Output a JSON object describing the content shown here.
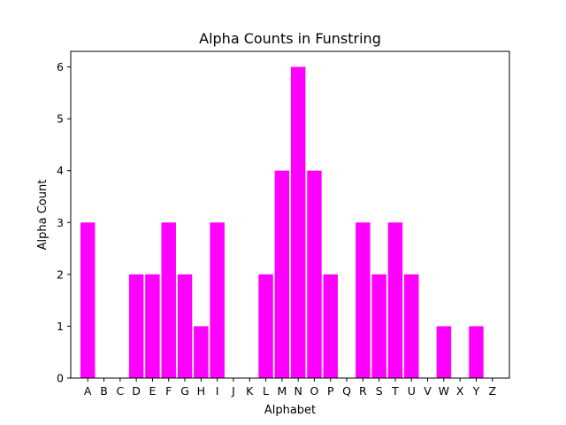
{
  "chart_data": {
    "type": "bar",
    "title": "Alpha Counts in Funstring",
    "xlabel": "Alphabet",
    "ylabel": "Alpha Count",
    "categories": [
      "A",
      "B",
      "C",
      "D",
      "E",
      "F",
      "G",
      "H",
      "I",
      "J",
      "K",
      "L",
      "M",
      "N",
      "O",
      "P",
      "Q",
      "R",
      "S",
      "T",
      "U",
      "V",
      "W",
      "X",
      "Y",
      "Z"
    ],
    "values": [
      3,
      0,
      0,
      2,
      2,
      3,
      2,
      1,
      3,
      0,
      0,
      2,
      4,
      6,
      4,
      2,
      0,
      3,
      2,
      3,
      2,
      0,
      1,
      0,
      1,
      0
    ],
    "ylim": [
      0,
      6.3
    ],
    "yticks": [
      0,
      1,
      2,
      3,
      4,
      5,
      6
    ],
    "bar_color": "#ff00ff",
    "grid": false,
    "legend": "none"
  }
}
